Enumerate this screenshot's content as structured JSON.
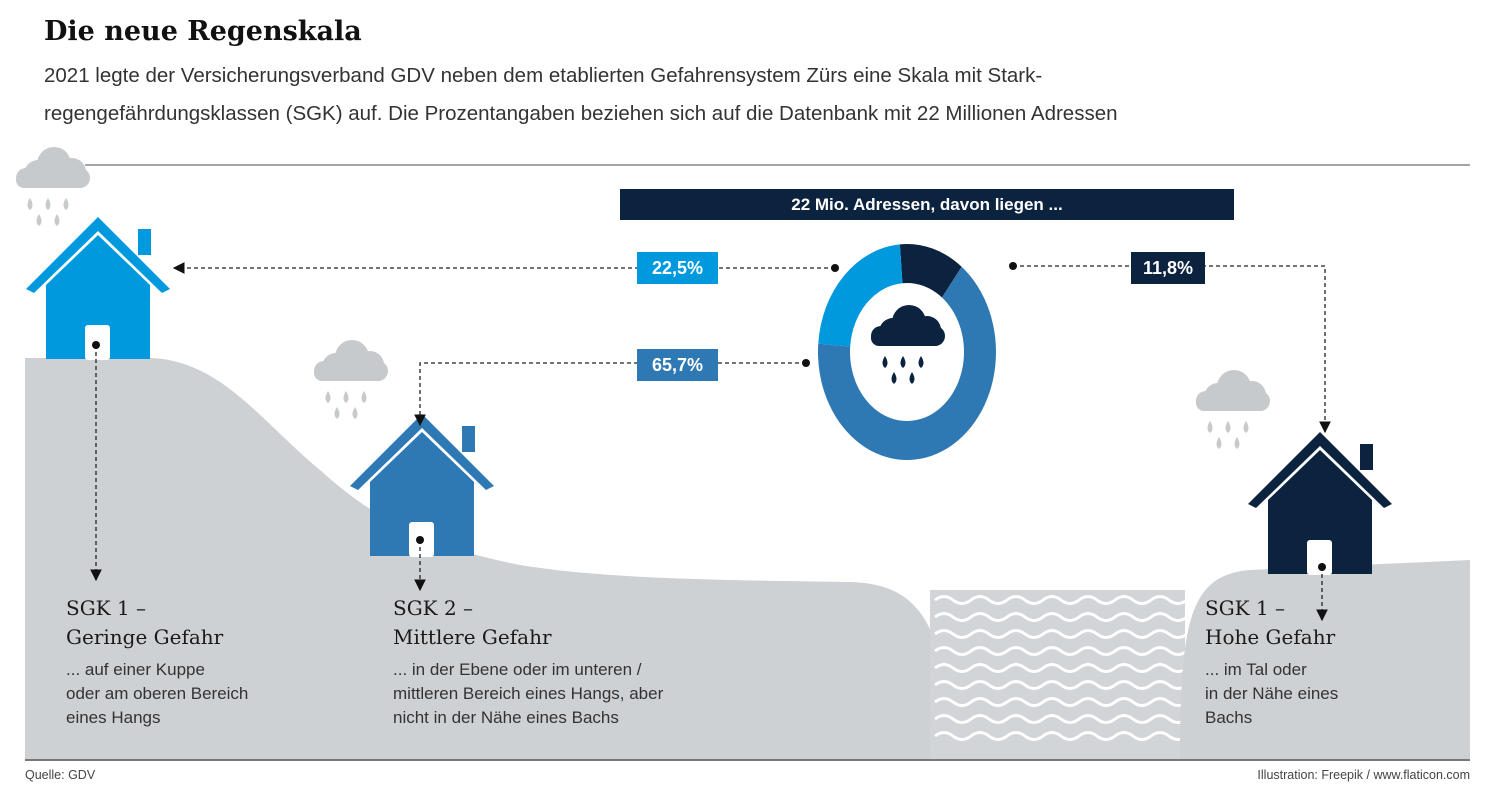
{
  "title": "Die neue Regenskala",
  "subtitle_lines": [
    "2021 legte der Versicherungsverband GDV neben dem etablierten Gefahrensystem Zürs eine Skala mit Stark-",
    "regengefährdungsklassen (SGK) auf. Die Prozentangaben beziehen sich auf die Datenbank mit 22 Millionen Adressen"
  ],
  "header": "22 Mio. Adressen, davon liegen ...",
  "colors": {
    "low": "#0099dd",
    "mid": "#2e78b4",
    "high": "#0c2340",
    "ground": "#cdd1d4",
    "cloud": "#c6cacd"
  },
  "chart_data": {
    "type": "pie",
    "donut": true,
    "title": "22 Mio. Adressen, davon liegen ...",
    "slices": [
      {
        "label": "11,8%",
        "value": 11.8,
        "color": "#0c2340",
        "category": "SGK 1 – Hohe Gefahr"
      },
      {
        "label": "65,7%",
        "value": 65.7,
        "color": "#2e78b4",
        "category": "SGK 2 – Mittlere Gefahr"
      },
      {
        "label": "22,5%",
        "value": 22.5,
        "color": "#0099dd",
        "category": "SGK 1 – Geringe Gefahr"
      }
    ]
  },
  "classes": [
    {
      "head1": "SGK 1 –",
      "head2": "Geringe Gefahr",
      "desc": [
        "... auf einer Kuppe",
        "oder am oberen Bereich",
        "eines Hangs"
      ]
    },
    {
      "head1": "SGK 2 –",
      "head2": "Mittlere Gefahr",
      "desc": [
        "... in der Ebene oder im unteren /",
        "mittleren Bereich eines Hangs, aber",
        "nicht in der Nähe eines Bachs"
      ]
    },
    {
      "head1": "SGK 1 –",
      "head2": "Hohe Gefahr",
      "desc": [
        "... im Tal oder",
        "in der Nähe eines",
        "Bachs"
      ]
    }
  ],
  "footer": {
    "source": "Quelle: GDV",
    "credit": "Illustration: Freepik / www.flaticon.com"
  }
}
